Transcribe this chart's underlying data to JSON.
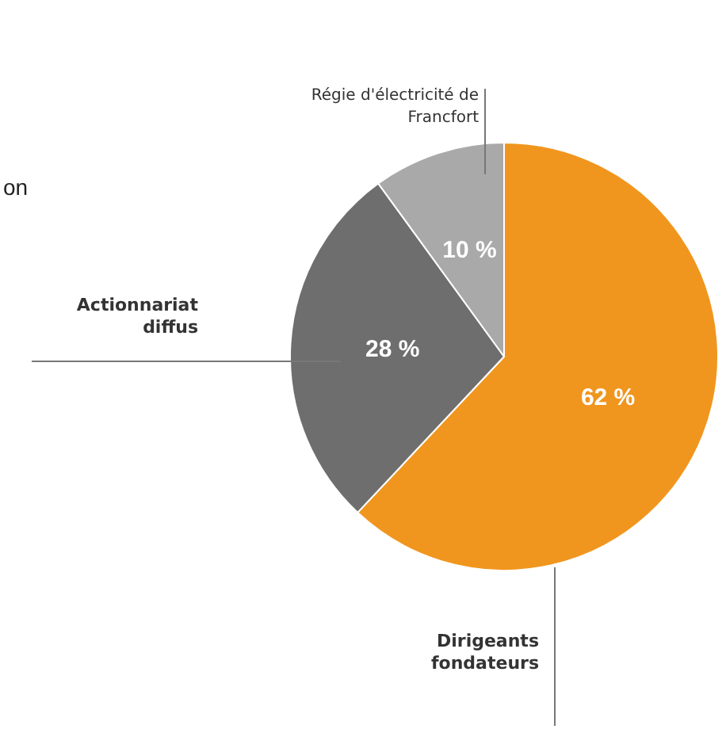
{
  "chart_data": {
    "type": "pie",
    "categories": [
      "Dirigeants fondateurs",
      "Actionnariat diffus",
      "Régie d'électricité de Francfort"
    ],
    "values": [
      62,
      28,
      10
    ],
    "colors": [
      "#f0961e",
      "#6e6e6e",
      "#a9a9a9"
    ],
    "value_labels": [
      "62 %",
      "28 %",
      "10 %"
    ],
    "legend": false,
    "annotations": [
      "on"
    ]
  }
}
